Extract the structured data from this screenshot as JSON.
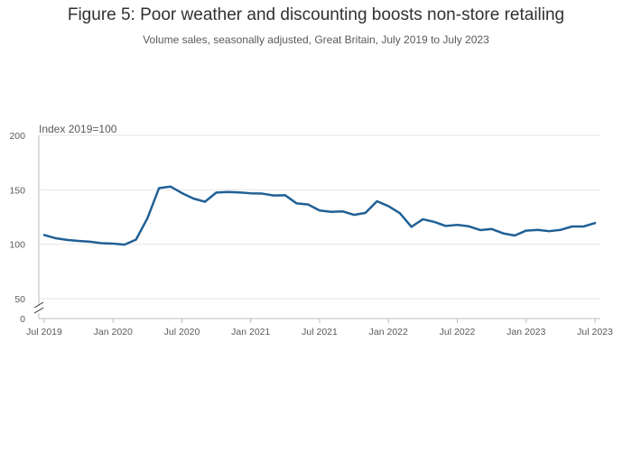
{
  "chart_data": {
    "type": "line",
    "title": "Figure 5: Poor weather and discounting boosts non-store retailing",
    "subtitle": "Volume sales, seasonally adjusted, Great Britain, July 2019 to July 2023",
    "ylabel": "Index 2019=100",
    "xlabel": "",
    "y_ticks": [
      "0",
      "50",
      "100",
      "150",
      "200"
    ],
    "y_axis_break": "between 0 and 50",
    "ylim": [
      50,
      200
    ],
    "x_ticks": [
      "Jul 2019",
      "Jan 2020",
      "Jul 2020",
      "Jan 2021",
      "Jul 2021",
      "Jan 2022",
      "Jul 2022",
      "Jan 2023",
      "Jul 2023"
    ],
    "grid": true,
    "legend": "none",
    "series_color": "#206095",
    "series": [
      {
        "x": [
          "2019-07",
          "2019-08",
          "2019-09",
          "2019-10",
          "2019-11",
          "2019-12",
          "2020-01",
          "2020-02",
          "2020-03",
          "2020-04",
          "2020-05",
          "2020-06",
          "2020-07",
          "2020-08",
          "2020-09",
          "2020-10",
          "2020-11",
          "2020-12",
          "2021-01",
          "2021-02",
          "2021-03",
          "2021-04",
          "2021-05",
          "2021-06",
          "2021-07",
          "2021-08",
          "2021-09",
          "2021-10",
          "2021-11",
          "2021-12",
          "2022-01",
          "2022-02",
          "2022-03",
          "2022-04",
          "2022-05",
          "2022-06",
          "2022-07",
          "2022-08",
          "2022-09",
          "2022-10",
          "2022-11",
          "2022-12",
          "2023-01",
          "2023-02",
          "2023-03",
          "2023-04",
          "2023-05",
          "2023-06",
          "2023-07"
        ],
        "values": [
          108.5,
          105.5,
          104.0,
          103.0,
          102.3,
          101.0,
          100.6,
          99.6,
          104.3,
          124.0,
          151.5,
          153.0,
          147.0,
          142.0,
          139.0,
          147.5,
          148.0,
          147.6,
          146.8,
          146.5,
          144.8,
          145.0,
          137.5,
          136.5,
          131.0,
          129.8,
          130.2,
          127.0,
          128.8,
          139.5,
          135.0,
          128.5,
          116.0,
          123.0,
          120.5,
          116.8,
          117.8,
          116.5,
          113.0,
          114.0,
          110.0,
          108.0,
          112.5,
          113.2,
          112.0,
          113.2,
          116.3,
          116.3,
          119.5
        ]
      }
    ]
  }
}
